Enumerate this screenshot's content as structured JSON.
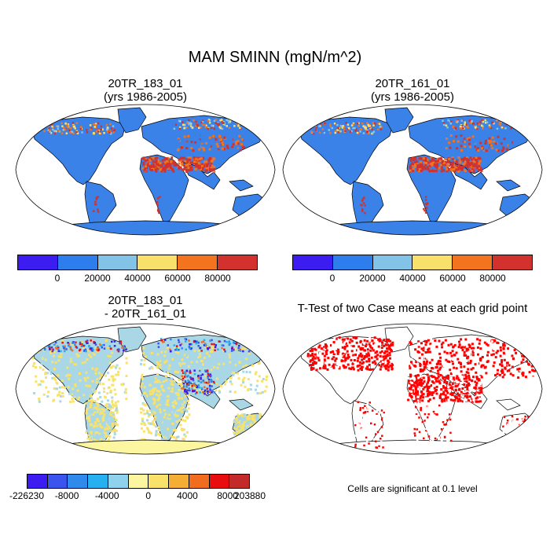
{
  "title": "MAM SMINN (mgN/m^2)",
  "panels": {
    "p1": {
      "title_line1": "20TR_183_01",
      "title_line2": "(yrs 1986-2005)"
    },
    "p2": {
      "title_line1": "20TR_161_01",
      "title_line2": "(yrs 1986-2005)"
    },
    "p3": {
      "title_line1": "20TR_183_01",
      "title_line2": "- 20TR_161_01"
    },
    "p4": {
      "title_line1": "T-Test of two Case means at each grid point"
    }
  },
  "colorbar_top": {
    "colors": [
      "#3c1cf0",
      "#2e7ded",
      "#84c3e8",
      "#f9e06a",
      "#f3731f",
      "#d3312d"
    ],
    "labels": [
      "0",
      "20000",
      "40000",
      "60000",
      "80000"
    ]
  },
  "colorbar_diff": {
    "colors": [
      "#3c1cf0",
      "#3b54ee",
      "#2f8aec",
      "#27b0f0",
      "#8ed2ee",
      "#fcf6a0",
      "#f8e26a",
      "#f4ad35",
      "#f06d1f",
      "#ea0d10",
      "#c32a2a"
    ],
    "labels": [
      "-226230",
      "-8000",
      "-4000",
      "0",
      "4000",
      "8000",
      "203880"
    ]
  },
  "map_colors": {
    "ocean": "#ffffff",
    "land_top": "#3b82e8",
    "hot_top": "#d3312d",
    "warm_top": "#f3731f",
    "land_diff": "#a9d7e6",
    "pos_diff": "#f8e26a",
    "sig": "#ff0000",
    "coast": "#000000"
  },
  "note": "Cells are significant at 0.1 level"
}
